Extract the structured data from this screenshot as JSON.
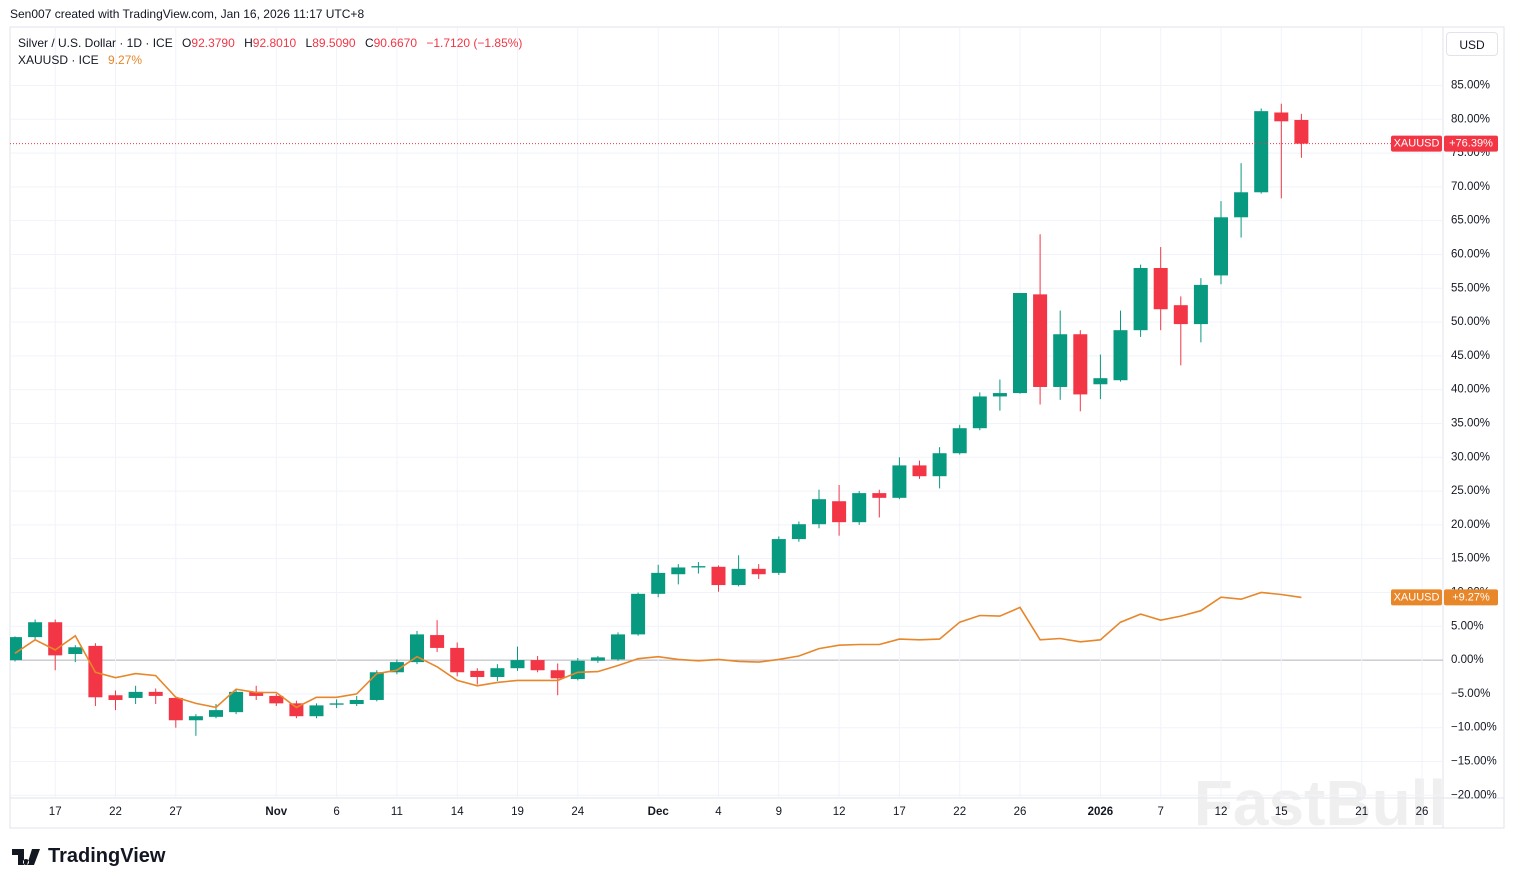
{
  "header": {
    "credit": "Sen007 created with TradingView.com, Jan 16, 2026 11:17 UTC+8",
    "symbol": "Silver / U.S. Dollar · 1D · ICE",
    "ohlc": [
      {
        "key": "O",
        "value": "92.3790"
      },
      {
        "key": "H",
        "value": "92.8010"
      },
      {
        "key": "L",
        "value": "89.5090"
      },
      {
        "key": "C",
        "value": "90.6670"
      }
    ],
    "change": "−1.7120 (−1.85%)",
    "compare_symbol": "XAUUSD · ICE",
    "compare_change": "9.27%"
  },
  "currency": "USD",
  "watermark": "FastBull",
  "footer": {
    "logo": "TradingView"
  },
  "chart_data": {
    "type": "candlestick",
    "categories": [
      null,
      null,
      "17",
      null,
      null,
      "22",
      null,
      null,
      "27",
      null,
      null,
      null,
      null,
      "Nov",
      null,
      null,
      "6",
      null,
      null,
      "11",
      null,
      null,
      "14",
      null,
      null,
      "19",
      null,
      null,
      "24",
      null,
      null,
      null,
      "Dec",
      null,
      null,
      "4",
      null,
      null,
      "9",
      null,
      null,
      "12",
      null,
      null,
      "17",
      null,
      null,
      "22",
      null,
      null,
      "26",
      null,
      null,
      null,
      "2026",
      null,
      null,
      "7",
      null,
      null,
      "12",
      null,
      null,
      "15",
      null,
      null,
      null,
      "21",
      null,
      null,
      "26",
      null
    ],
    "open": [
      0,
      3.4,
      5.6,
      0.9,
      2.1,
      -5.2,
      -5.6,
      -4.7,
      -5.6,
      -8.9,
      -8.4,
      -7.7,
      -4.7,
      -5.3,
      -6.4,
      -8.3,
      -6.6,
      -6.5,
      -5.9,
      -1.8,
      -0.3,
      3.7,
      1.8,
      -1.6,
      -2.5,
      -1.2,
      0,
      -1.5,
      -2.8,
      -0.1,
      0.1,
      3.8,
      9.8,
      12.7,
      13.7,
      13.8,
      11.1,
      13.5,
      12.9,
      17.9,
      20.1,
      23.5,
      20.4,
      24.7,
      24.0,
      28.8,
      27.2,
      30.6,
      34.3,
      39.0,
      39.5,
      54.1,
      40.4,
      48.2,
      40.8,
      41.4,
      48.8,
      58.0,
      52.5,
      49.7,
      56.9,
      65.5,
      69.2,
      81.0,
      79.9,
      null,
      null,
      null,
      null,
      null,
      null,
      null
    ],
    "high": [
      3.5,
      6,
      6,
      2.2,
      2.5,
      -4.5,
      -3.8,
      -4.2,
      -5.4,
      -8.0,
      -6.5,
      -4.3,
      -3.8,
      -5,
      -6,
      -6.4,
      -5.8,
      -5.3,
      -1.5,
      0.1,
      4.3,
      5.9,
      2.6,
      -1.2,
      -0.6,
      2.0,
      0.6,
      -0.5,
      0.3,
      0.6,
      4.1,
      10,
      14.1,
      14.2,
      14.5,
      14.0,
      15.5,
      14.2,
      18.3,
      20.5,
      25.2,
      25.9,
      25.0,
      25.2,
      30.0,
      29.5,
      31.5,
      34.8,
      39.6,
      41.5,
      54.3,
      63.0,
      51.7,
      48.8,
      45.2,
      51.7,
      58.5,
      61.1,
      53.8,
      56.5,
      67.9,
      73.5,
      81.6,
      82.3,
      80.8,
      null,
      null,
      null,
      null,
      null,
      null,
      null
    ],
    "low": [
      -0.2,
      3,
      -1.5,
      -0.3,
      -6.8,
      -7.4,
      -6.5,
      -6.5,
      -10,
      -11.2,
      -8.6,
      -8,
      -5.9,
      -6.8,
      -8.6,
      -8.6,
      -7.1,
      -6.8,
      -6.1,
      -2.1,
      -0.6,
      1.2,
      -2.4,
      -3.6,
      -3.1,
      -1.6,
      -1.8,
      -5.2,
      -3.0,
      -0.4,
      -0.1,
      3.6,
      9.3,
      11.2,
      12.8,
      10.1,
      10.9,
      12.0,
      12.6,
      17.5,
      19.5,
      18.4,
      20.0,
      21.1,
      23.8,
      26.8,
      25.4,
      30.4,
      34.0,
      36.9,
      39.4,
      37.8,
      38.5,
      36.8,
      38.6,
      41.2,
      47.8,
      48.8,
      43.6,
      47.0,
      55.6,
      62.5,
      69.0,
      68.3,
      74.3,
      null,
      null,
      null,
      null,
      null,
      null,
      null
    ],
    "close": [
      3.4,
      5.6,
      0.7,
      1.9,
      -5.5,
      -5.9,
      -4.7,
      -5.3,
      -8.9,
      -8.3,
      -7.4,
      -4.7,
      -5.3,
      -6.4,
      -8.3,
      -6.7,
      -6.4,
      -5.9,
      -1.8,
      -0.3,
      3.8,
      1.8,
      -1.8,
      -2.5,
      -1.2,
      0,
      -1.5,
      -2.7,
      -0.1,
      0.4,
      3.8,
      9.8,
      12.9,
      13.7,
      13.9,
      11.1,
      13.5,
      12.7,
      17.9,
      20.1,
      23.8,
      20.4,
      24.7,
      24.0,
      28.8,
      27.2,
      30.6,
      34.3,
      39.0,
      39.5,
      54.3,
      40.4,
      48.2,
      39.3,
      41.7,
      48.8,
      58.0,
      51.9,
      49.7,
      55.5,
      65.5,
      69.2,
      81.2,
      79.7,
      76.39,
      null,
      null,
      null,
      null,
      null,
      null,
      null
    ],
    "up_color": "#089981",
    "down_color": "#f23645",
    "series": [
      {
        "name": "XAUUSD",
        "color": "#e8862a",
        "values": [
          1.0,
          3.0,
          1.5,
          3.6,
          -1.8,
          -2.6,
          -2.0,
          -2.3,
          -5.5,
          -6.4,
          -7.0,
          -4.3,
          -4.8,
          -4.8,
          -7.0,
          -5.5,
          -5.5,
          -5.0,
          -2.0,
          -1.5,
          0.5,
          -1.0,
          -3.0,
          -3.8,
          -3.3,
          -3.0,
          -3.0,
          -3.0,
          -1.8,
          -1.7,
          -0.8,
          0.2,
          0.5,
          0.1,
          -0.1,
          0.1,
          -0.2,
          -0.3,
          0.1,
          0.6,
          1.7,
          2.2,
          2.3,
          2.3,
          3.1,
          3.0,
          3.1,
          5.6,
          6.6,
          6.5,
          7.8,
          3.0,
          3.2,
          2.7,
          3.0,
          5.6,
          6.8,
          5.9,
          6.5,
          7.3,
          9.3,
          9.0,
          10.0,
          9.7,
          9.27,
          null,
          null,
          null,
          null,
          null,
          null,
          null
        ]
      }
    ],
    "price_tags": [
      {
        "name": "XAUUSD",
        "label": "+76.39%",
        "value": 76.39,
        "color": "#f23645"
      },
      {
        "name": "XAUUSD",
        "label": "+9.27%",
        "value": 9.27,
        "color": "#e8862a"
      }
    ],
    "ylim": [
      -20.4,
      93.5
    ],
    "yticks": [
      {
        "value": -20,
        "label": "−20.00%"
      },
      {
        "value": -15,
        "label": "−15.00%"
      },
      {
        "value": -10,
        "label": "−10.00%"
      },
      {
        "value": -5,
        "label": "−5.00%"
      },
      {
        "value": 0,
        "label": "0.00%"
      },
      {
        "value": 5,
        "label": "5.00%"
      },
      {
        "value": 10,
        "label": "10.00%"
      },
      {
        "value": 15,
        "label": "15.00%"
      },
      {
        "value": 20,
        "label": "20.00%"
      },
      {
        "value": 25,
        "label": "25.00%"
      },
      {
        "value": 30,
        "label": "30.00%"
      },
      {
        "value": 35,
        "label": "35.00%"
      },
      {
        "value": 40,
        "label": "40.00%"
      },
      {
        "value": 45,
        "label": "45.00%"
      },
      {
        "value": 50,
        "label": "50.00%"
      },
      {
        "value": 55,
        "label": "55.00%"
      },
      {
        "value": 60,
        "label": "60.00%"
      },
      {
        "value": 65,
        "label": "65.00%"
      },
      {
        "value": 70,
        "label": "70.00%"
      },
      {
        "value": 75,
        "label": "75.00%"
      },
      {
        "value": 80,
        "label": "80.00%"
      },
      {
        "value": 85,
        "label": "85.00%"
      }
    ],
    "grid": true,
    "zero_line": true
  }
}
